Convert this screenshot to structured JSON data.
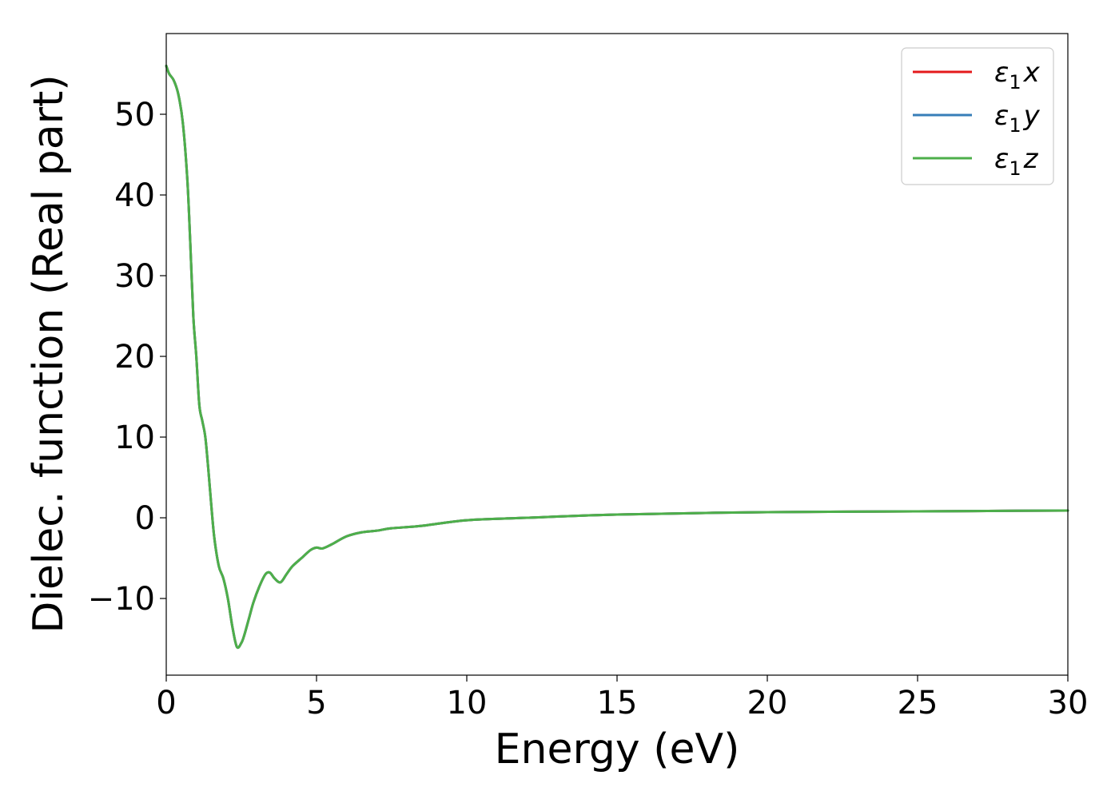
{
  "chart_data": {
    "type": "line",
    "title": "",
    "xlabel": "Energy (eV)",
    "ylabel": "Dielec. function (Real part)",
    "xlim": [
      0,
      30
    ],
    "ylim": [
      -19.5,
      60
    ],
    "xticks": [
      0,
      5,
      10,
      15,
      20,
      25,
      30
    ],
    "xtick_labels": [
      "0",
      "5",
      "10",
      "15",
      "20",
      "25",
      "30"
    ],
    "yticks": [
      -10,
      0,
      10,
      20,
      30,
      40,
      50
    ],
    "ytick_labels": [
      "−10",
      "0",
      "10",
      "20",
      "30",
      "40",
      "50"
    ],
    "grid": false,
    "legend_position": "top-right",
    "series": [
      {
        "name_base": "ε",
        "name_sub": "1",
        "name_axis": "x",
        "color": "#e41a1c",
        "x": [
          0.0,
          0.1,
          0.25,
          0.4,
          0.55,
          0.7,
          0.8,
          0.9,
          1.0,
          1.1,
          1.2,
          1.3,
          1.4,
          1.5,
          1.6,
          1.75,
          1.9,
          2.05,
          2.2,
          2.35,
          2.5,
          2.6,
          2.75,
          2.9,
          3.1,
          3.3,
          3.45,
          3.6,
          3.8,
          4.0,
          4.2,
          4.5,
          4.8,
          5.0,
          5.2,
          5.5,
          6.0,
          6.5,
          7.0,
          7.5,
          8.5,
          10.0,
          12.0,
          15.0,
          20.0,
          25.0,
          30.0
        ],
        "y": [
          56.0,
          55.0,
          54.2,
          52.5,
          49.0,
          42.0,
          34.0,
          25.0,
          20.0,
          14.0,
          12.0,
          10.0,
          6.0,
          1.5,
          -2.5,
          -6.0,
          -7.5,
          -10.0,
          -13.5,
          -16.0,
          -15.5,
          -14.5,
          -12.5,
          -10.5,
          -8.5,
          -7.0,
          -6.8,
          -7.5,
          -8.0,
          -7.0,
          -6.0,
          -5.0,
          -4.0,
          -3.7,
          -3.8,
          -3.3,
          -2.3,
          -1.8,
          -1.6,
          -1.3,
          -1.0,
          -0.3,
          0.0,
          0.4,
          0.7,
          0.8,
          0.9
        ]
      },
      {
        "name_base": "ε",
        "name_sub": "1",
        "name_axis": "y",
        "color": "#377eb8",
        "x": [
          0.0,
          0.1,
          0.25,
          0.4,
          0.55,
          0.7,
          0.8,
          0.9,
          1.0,
          1.1,
          1.2,
          1.3,
          1.4,
          1.5,
          1.6,
          1.75,
          1.9,
          2.05,
          2.2,
          2.35,
          2.5,
          2.6,
          2.75,
          2.9,
          3.1,
          3.3,
          3.45,
          3.6,
          3.8,
          4.0,
          4.2,
          4.5,
          4.8,
          5.0,
          5.2,
          5.5,
          6.0,
          6.5,
          7.0,
          7.5,
          8.5,
          10.0,
          12.0,
          15.0,
          20.0,
          25.0,
          30.0
        ],
        "y": [
          56.0,
          55.0,
          54.2,
          52.5,
          49.0,
          42.0,
          34.0,
          25.0,
          20.0,
          14.0,
          12.0,
          10.0,
          6.0,
          1.5,
          -2.5,
          -6.0,
          -7.5,
          -10.0,
          -13.5,
          -16.0,
          -15.5,
          -14.5,
          -12.5,
          -10.5,
          -8.5,
          -7.0,
          -6.8,
          -7.5,
          -8.0,
          -7.0,
          -6.0,
          -5.0,
          -4.0,
          -3.7,
          -3.8,
          -3.3,
          -2.3,
          -1.8,
          -1.6,
          -1.3,
          -1.0,
          -0.3,
          0.0,
          0.4,
          0.7,
          0.8,
          0.9
        ]
      },
      {
        "name_base": "ε",
        "name_sub": "1",
        "name_axis": "z",
        "color": "#4daf4a",
        "x": [
          0.0,
          0.1,
          0.25,
          0.4,
          0.55,
          0.7,
          0.8,
          0.9,
          1.0,
          1.1,
          1.2,
          1.3,
          1.4,
          1.5,
          1.6,
          1.75,
          1.9,
          2.05,
          2.2,
          2.35,
          2.5,
          2.6,
          2.75,
          2.9,
          3.1,
          3.3,
          3.45,
          3.6,
          3.8,
          4.0,
          4.2,
          4.5,
          4.8,
          5.0,
          5.2,
          5.5,
          6.0,
          6.5,
          7.0,
          7.5,
          8.5,
          10.0,
          12.0,
          15.0,
          20.0,
          25.0,
          30.0
        ],
        "y": [
          56.0,
          55.0,
          54.2,
          52.5,
          49.0,
          42.0,
          34.0,
          25.0,
          20.0,
          14.0,
          12.0,
          10.0,
          6.0,
          1.5,
          -2.5,
          -6.0,
          -7.5,
          -10.0,
          -13.5,
          -16.0,
          -15.5,
          -14.5,
          -12.5,
          -10.5,
          -8.5,
          -7.0,
          -6.8,
          -7.5,
          -8.0,
          -7.0,
          -6.0,
          -5.0,
          -4.0,
          -3.7,
          -3.8,
          -3.3,
          -2.3,
          -1.8,
          -1.6,
          -1.3,
          -1.0,
          -0.3,
          0.0,
          0.4,
          0.7,
          0.8,
          0.9
        ]
      }
    ]
  }
}
